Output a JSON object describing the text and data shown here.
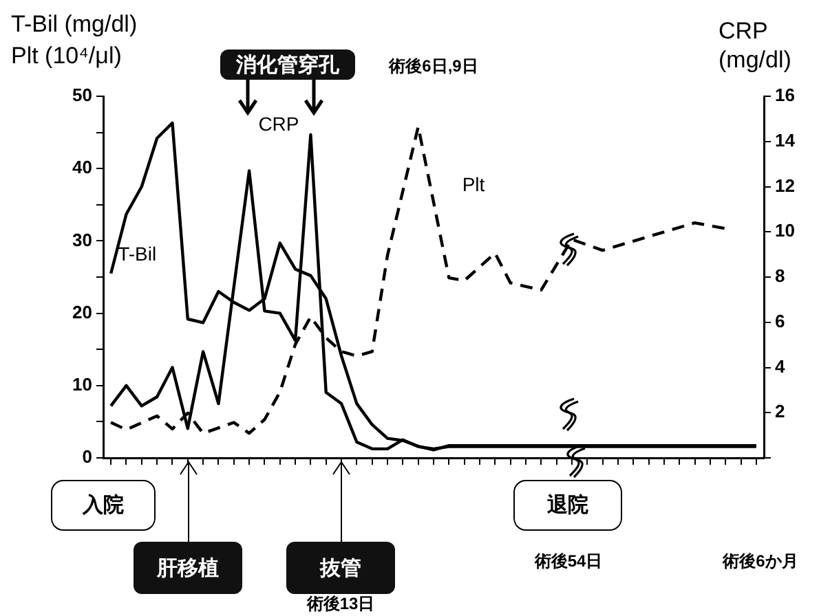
{
  "chart_data": {
    "type": "line",
    "ylabel": "T-Bil (mg/dl)\nPlt (10⁴/μl)",
    "y2label": "CRP\n(mg/dl)",
    "categories": [
      null,
      null,
      null,
      null,
      null,
      null,
      null,
      null,
      null,
      null,
      null,
      null,
      null,
      null,
      null,
      null,
      null,
      null,
      null,
      null,
      null,
      null,
      null,
      null,
      null,
      null,
      null,
      null,
      null,
      null,
      null,
      null,
      null,
      null,
      null,
      null,
      null,
      null,
      null,
      null,
      null,
      null,
      null
    ],
    "series": [
      {
        "name": "T-Bil",
        "color": "#000000",
        "line_style": "solid",
        "values": [
          25.5,
          33.7,
          37.5,
          44.2,
          46.3,
          19.2,
          18.7,
          23,
          21.5,
          20.4,
          22,
          29.7,
          26.1,
          25.2,
          22,
          14.1,
          7.5,
          4.6,
          2.7,
          2.4,
          1.6,
          1.1,
          1.7,
          1.7,
          1.7,
          1.7,
          1.7,
          1.7,
          1.7,
          1.7,
          1.7,
          1.7,
          1.7,
          1.7,
          1.7,
          1.7,
          1.7,
          1.7,
          1.7,
          1.7,
          1.7,
          1.7,
          1.7
        ]
      },
      {
        "name": "CRP",
        "color": "#000000",
        "line_style": "solid",
        "axis": "y2",
        "values": [
          2.3,
          3.2,
          2.3,
          2.7,
          4,
          1.3,
          4.7,
          2.4,
          null,
          12.7,
          6.5,
          6.4,
          5.2,
          14.3,
          2.9,
          2.4,
          0.7,
          0.4,
          0.4,
          0.8,
          0.5,
          0.4,
          0.5,
          0.5,
          0.5,
          0.5,
          0.5,
          0.5,
          0.5,
          0.5,
          0.5,
          0.5,
          0.5,
          0.5,
          0.5,
          0.5,
          0.5,
          0.5,
          0.5,
          0.5,
          0.5,
          0.5,
          0.5
        ]
      },
      {
        "name": "Plt",
        "color": "#000000",
        "line_style": "dashed",
        "values": [
          4.9,
          3.9,
          null,
          5.8,
          4,
          6.2,
          3.4,
          null,
          4.9,
          3.4,
          5.3,
          9.1,
          15.7,
          19.5,
          16.6,
          14.7,
          14.1,
          14.7,
          28,
          null,
          45.8,
          null,
          24.9,
          24.5,
          null,
          28.3,
          24.2,
          null,
          23.2,
          null,
          30.2,
          null,
          28.7,
          null,
          null,
          30.6,
          null,
          null,
          32.5,
          null,
          31.7,
          null,
          null
        ]
      }
    ],
    "ylim": [
      0,
      50
    ],
    "yticks": [
      0,
      {
        "value": 5,
        "label": null
      },
      10,
      {
        "value": 15,
        "label": null
      },
      20,
      {
        "value": 25,
        "label": null
      },
      30,
      {
        "value": 35,
        "label": null
      },
      40,
      {
        "value": 45,
        "label": null
      },
      50
    ],
    "y2lim": [
      0,
      16
    ],
    "y2ticks": [
      {
        "value": 0,
        "label": null
      },
      2,
      4,
      6,
      8,
      10,
      12,
      14,
      16
    ],
    "grid": false,
    "marker": "none",
    "annotations": [
      "消化管穿孔",
      "術後6日,9日",
      "入院",
      "肝移植",
      "抜管",
      "術後13日",
      "退院",
      "術後54日",
      "術後6か月"
    ]
  }
}
